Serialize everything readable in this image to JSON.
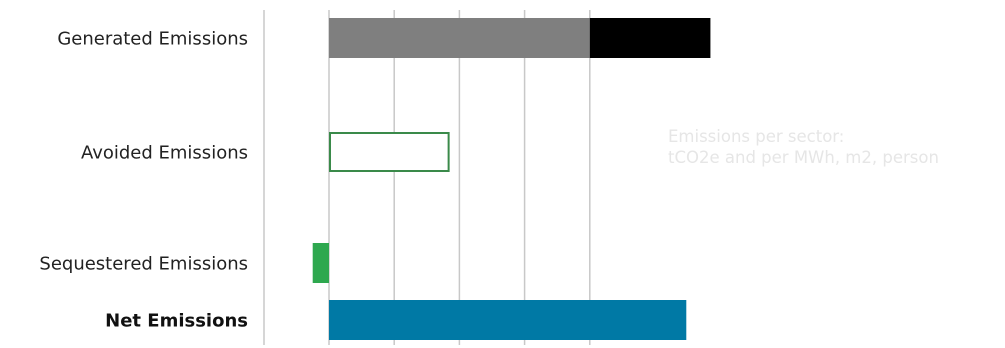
{
  "chart_data": {
    "type": "bar",
    "orientation": "horizontal",
    "stacked": true,
    "categories": [
      "Generated Emissions",
      "Avoided Emissions",
      "Sequestered Emissions",
      "Net Emissions"
    ],
    "category_emphasis": [
      false,
      false,
      false,
      true
    ],
    "grid": true,
    "bars": [
      {
        "category": "Generated Emissions",
        "segments": [
          {
            "start": 0,
            "value": 4.0,
            "color": "#7f7f7f",
            "style": "filled"
          },
          {
            "start": 4.0,
            "value": 1.85,
            "color": "#000000",
            "style": "filled"
          }
        ]
      },
      {
        "category": "Avoided Emissions",
        "segments": [
          {
            "start": 0,
            "value": 1.85,
            "color": "#3a8a4a",
            "style": "outline"
          }
        ]
      },
      {
        "category": "Sequestered Emissions",
        "segments": [
          {
            "start": 0,
            "value": -0.25,
            "color": "#2ea84f",
            "style": "filled"
          }
        ]
      },
      {
        "category": "Net Emissions",
        "segments": [
          {
            "start": 0,
            "value": 5.48,
            "color": "#0079a5",
            "style": "filled"
          }
        ]
      }
    ],
    "xlim": [
      0,
      5.85
    ],
    "gridlines_at": [
      0,
      1,
      2,
      3,
      4
    ]
  },
  "annotation": {
    "lines": [
      "Emissions per sector:",
      "tCO2e and per MWh, m2, person"
    ],
    "fill": "#7f7f7f",
    "text_color": "#e6e6e6"
  }
}
